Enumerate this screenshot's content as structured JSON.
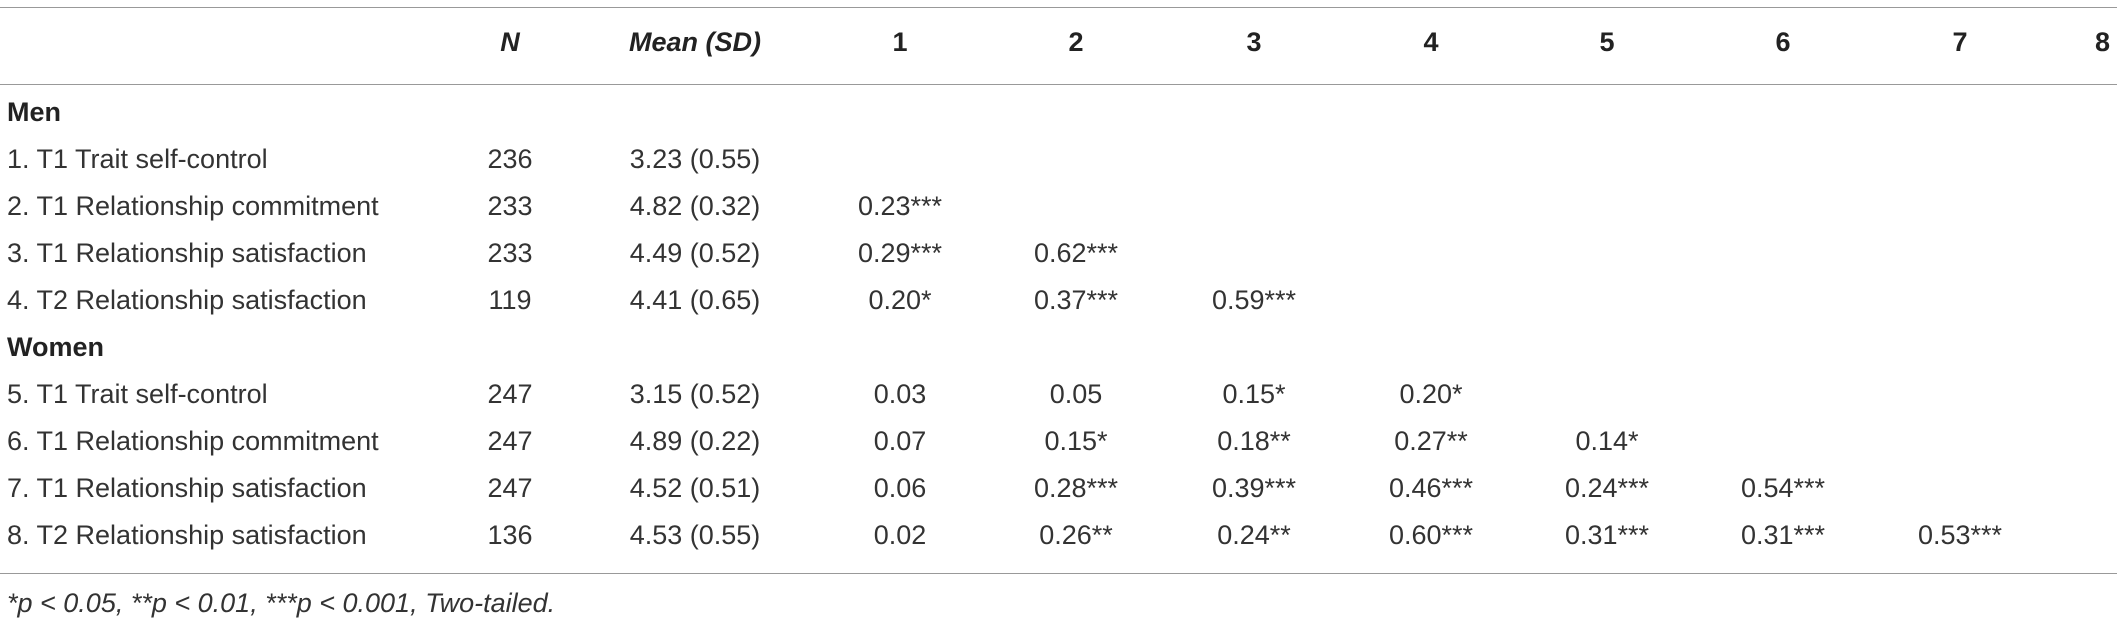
{
  "table": {
    "columns": [
      "N",
      "Mean (SD)",
      "1",
      "2",
      "3",
      "4",
      "5",
      "6",
      "7",
      "8"
    ],
    "sections": [
      {
        "label": "Men",
        "rows": [
          [
            "1. T1 Trait self-control",
            "236",
            "3.23 (0.55)"
          ],
          [
            "2. T1 Relationship commitment",
            "233",
            "4.82 (0.32)",
            "0.23***"
          ],
          [
            "3. T1 Relationship satisfaction",
            "233",
            "4.49 (0.52)",
            "0.29***",
            "0.62***"
          ],
          [
            "4. T2 Relationship satisfaction",
            "119",
            "4.41 (0.65)",
            "0.20*",
            "0.37***",
            "0.59***"
          ]
        ]
      },
      {
        "label": "Women",
        "rows": [
          [
            "5. T1 Trait self-control",
            "247",
            "3.15 (0.52)",
            "0.03",
            "0.05",
            "0.15*",
            "0.20*"
          ],
          [
            "6. T1 Relationship commitment",
            "247",
            "4.89 (0.22)",
            "0.07",
            "0.15*",
            "0.18**",
            "0.27**",
            "0.14*"
          ],
          [
            "7. T1 Relationship satisfaction",
            "247",
            "4.52 (0.51)",
            "0.06",
            "0.28***",
            "0.39***",
            "0.46***",
            "0.24***",
            "0.54***"
          ],
          [
            "8. T2 Relationship satisfaction",
            "136",
            "4.53 (0.55)",
            "0.02",
            "0.26**",
            "0.24**",
            "0.60***",
            "0.31***",
            "0.31***",
            "0.53***"
          ]
        ]
      }
    ]
  },
  "footnote": "*p < 0.05, **p < 0.01, ***p < 0.001, Two-tailed."
}
